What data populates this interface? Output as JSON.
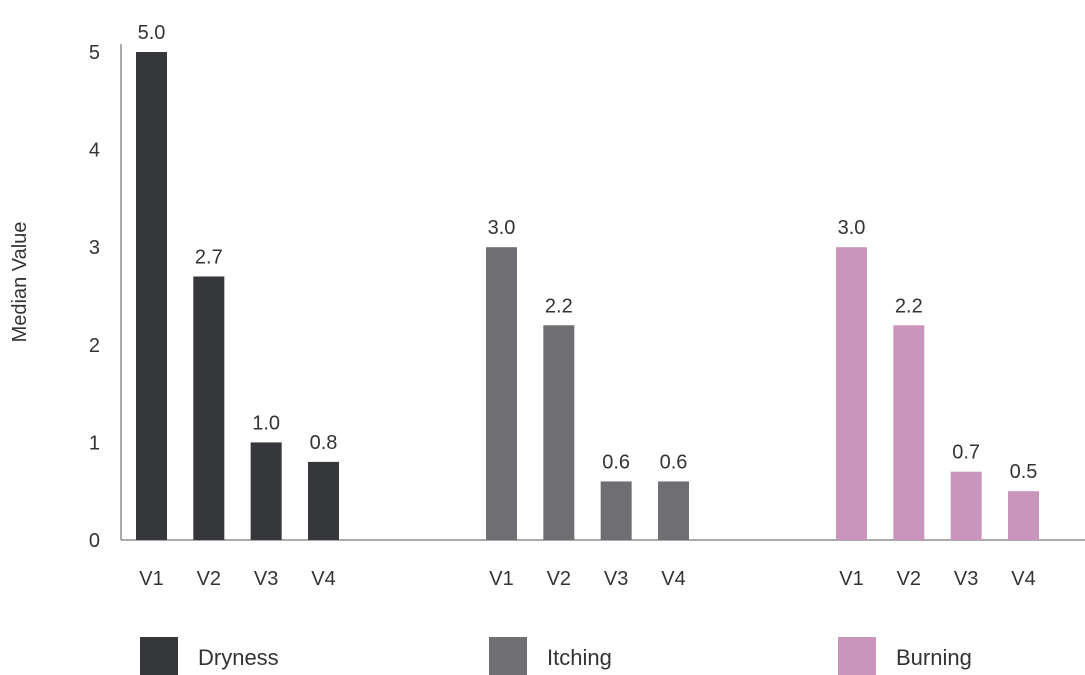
{
  "chart_data": {
    "type": "bar",
    "ylabel": "Median Value",
    "xlabel": "",
    "title": "",
    "ylim": [
      0,
      5.1
    ],
    "yticks": [
      0,
      1,
      2,
      3,
      4,
      5
    ],
    "grid": false,
    "legend_position": "bottom",
    "groups": [
      {
        "name": "Dryness",
        "color": "#35373b",
        "categories": [
          "V1",
          "V2",
          "V3",
          "V4"
        ],
        "values": [
          5.0,
          2.7,
          1.0,
          0.8
        ],
        "labels": [
          "5.0",
          "2.7",
          "1.0",
          "0.8"
        ]
      },
      {
        "name": "Itching",
        "color": "#6f6e72",
        "categories": [
          "V1",
          "V2",
          "V3",
          "V4"
        ],
        "values": [
          3.0,
          2.2,
          0.6,
          0.6
        ],
        "labels": [
          "3.0",
          "2.2",
          "0.6",
          "0.6"
        ]
      },
      {
        "name": "Burning",
        "color": "#c995bd",
        "categories": [
          "V1",
          "V2",
          "V3",
          "V4"
        ],
        "values": [
          3.0,
          2.2,
          0.7,
          0.5
        ],
        "labels": [
          "3.0",
          "2.2",
          "0.7",
          "0.5"
        ]
      }
    ]
  }
}
